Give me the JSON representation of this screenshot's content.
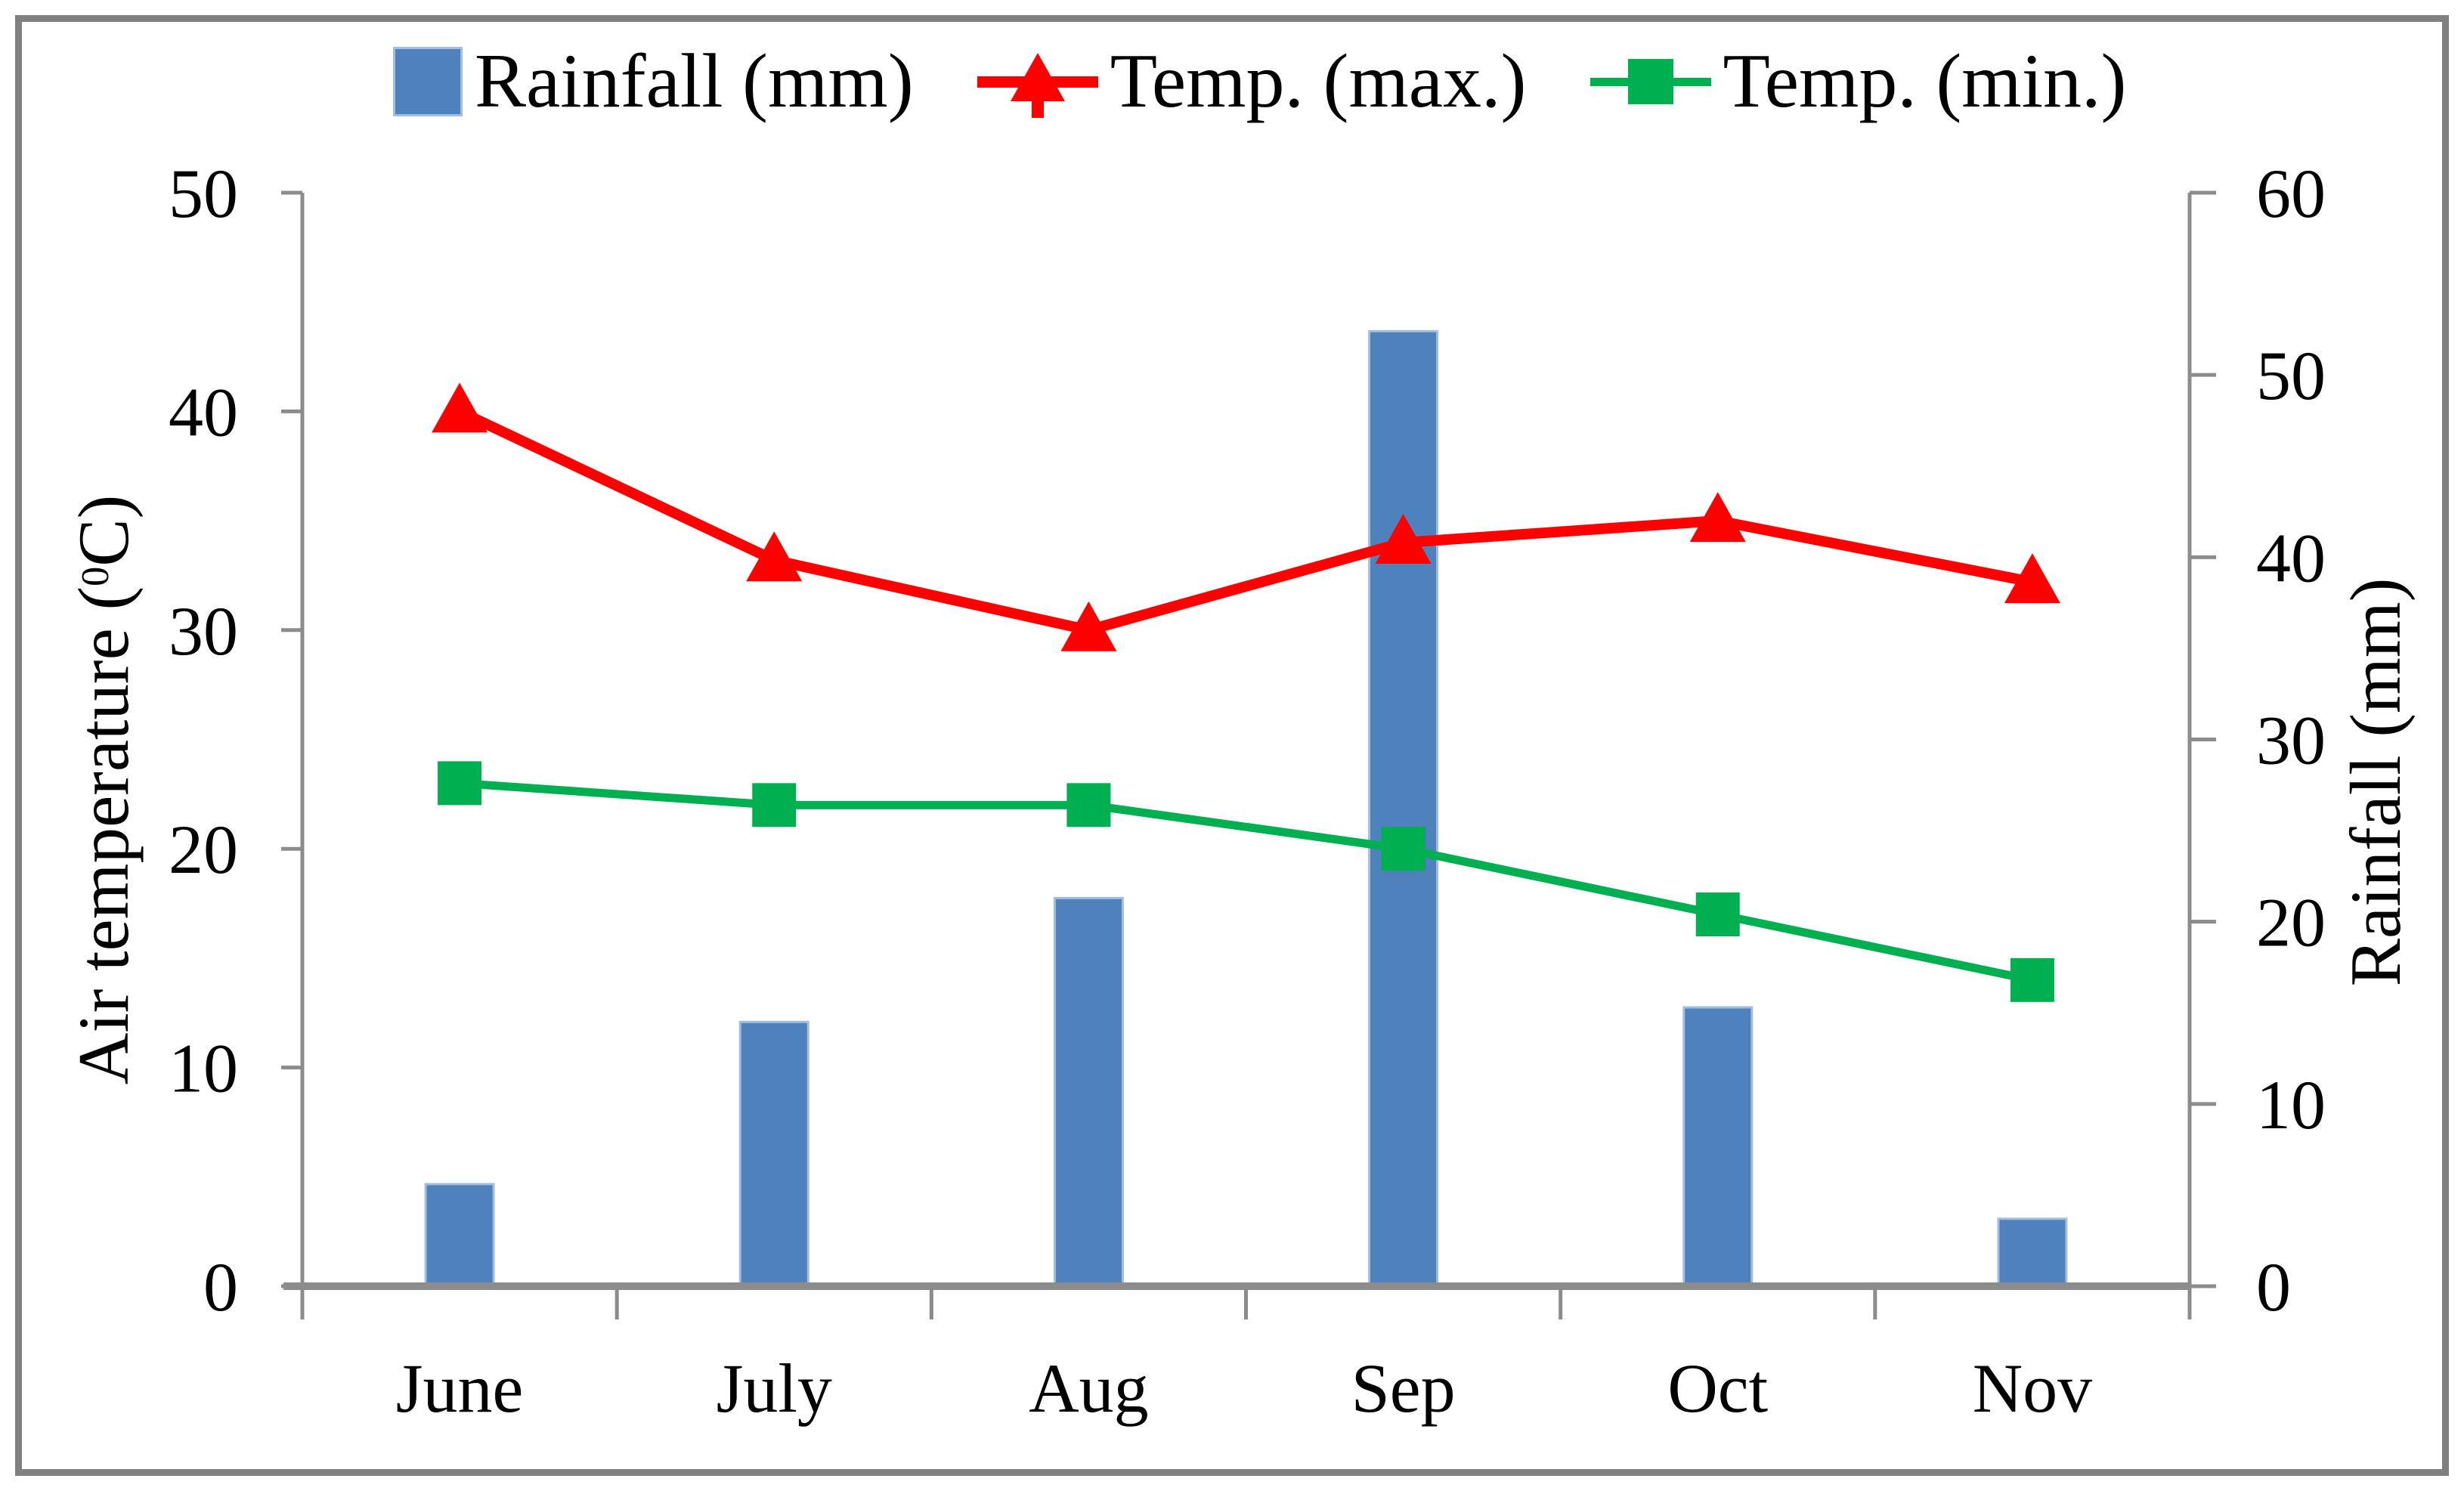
{
  "figure": {
    "legend": [
      {
        "label": "Rainfall (mm)",
        "swatch": "bar-square-icon",
        "color": "#4F81BD"
      },
      {
        "label": "Temp. (max.)",
        "swatch": "line-triangle-icon",
        "color": "#FE0000"
      },
      {
        "label": "Temp. (min.)",
        "swatch": "line-square-icon",
        "color": "#00B050"
      }
    ],
    "left_axis_title": {
      "prefix": "Air temperature (",
      "sup": "0",
      "suffix": "C)"
    }
  },
  "chart_data": {
    "type": "combo (bar + two lines, dual y-axes)",
    "categories": [
      "June",
      "July",
      "Aug",
      "Sep",
      "Oct",
      "Nov"
    ],
    "series": [
      {
        "name": "Rainfall (mm)",
        "type": "bar",
        "axis": "right",
        "color": "#4F81BD",
        "edge_color": "#A3BEDC",
        "values": [
          5.6,
          14.5,
          21.3,
          52.4,
          15.3,
          3.7
        ]
      },
      {
        "name": "Temp. (max.)",
        "type": "line",
        "marker": "triangle",
        "axis": "left",
        "color": "#FE0000",
        "values": [
          40,
          33.2,
          30,
          34,
          35,
          32.2
        ]
      },
      {
        "name": "Temp. (min.)",
        "type": "line",
        "marker": "square",
        "axis": "left",
        "color": "#00B050",
        "values": [
          23,
          22,
          22,
          20,
          17,
          14
        ]
      }
    ],
    "left_axis": {
      "label": "Air temperature (0C)",
      "min": 0,
      "max": 50,
      "ticks": [
        50,
        40,
        30,
        20,
        10,
        0
      ]
    },
    "right_axis": {
      "label": "Rainfall (mm)",
      "min": 0,
      "max": 60,
      "ticks": [
        60,
        50,
        40,
        30,
        20,
        10,
        0
      ]
    },
    "x_axis": {
      "tick_labels": [
        "June",
        "July",
        "Aug",
        "Sep",
        "Oct",
        "Nov"
      ]
    },
    "legend_position": "top",
    "grid": false,
    "axis_color": "#8C8C8C",
    "text_color": "#000000"
  }
}
